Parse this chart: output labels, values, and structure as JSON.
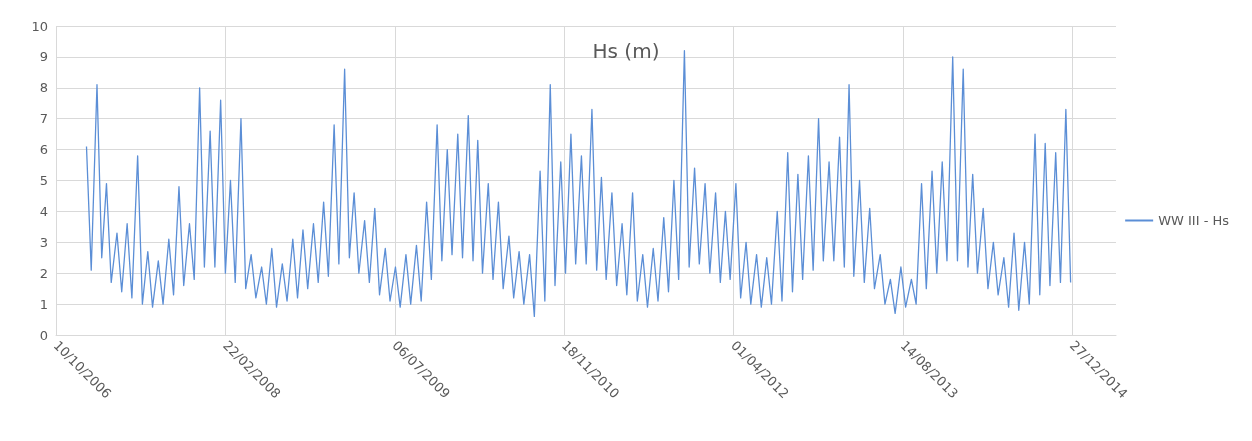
{
  "chart_data": {
    "type": "line",
    "title": "Hs (m)",
    "legend": "right",
    "grid": true,
    "marker": "none",
    "line_style": "solid",
    "xlim": [
      "2006-10-10",
      "2015-05-05"
    ],
    "xticks": [
      {
        "value": "2006-10-10",
        "label": "10/10/2006"
      },
      {
        "value": "2008-02-22",
        "label": "22/02/2008"
      },
      {
        "value": "2009-07-06",
        "label": "06/07/2009"
      },
      {
        "value": "2010-11-18",
        "label": "18/11/2010"
      },
      {
        "value": "2012-04-01",
        "label": "01/04/2012"
      },
      {
        "value": "2013-08-14",
        "label": "14/08/2013"
      },
      {
        "value": "2014-12-27",
        "label": "27/12/2014"
      }
    ],
    "ylim": [
      0,
      10
    ],
    "yticks": [
      0,
      1,
      2,
      3,
      4,
      5,
      6,
      7,
      8,
      9,
      10
    ],
    "x": [
      "2007-01-08",
      "2007-01-22",
      "2007-02-08",
      "2007-02-22",
      "2007-03-08",
      "2007-03-22",
      "2007-04-08",
      "2007-04-22",
      "2007-05-08",
      "2007-05-22",
      "2007-06-08",
      "2007-06-22",
      "2007-07-08",
      "2007-07-22",
      "2007-08-08",
      "2007-08-22",
      "2007-09-08",
      "2007-09-22",
      "2007-10-08",
      "2007-10-22",
      "2007-11-08",
      "2007-11-22",
      "2007-12-08",
      "2007-12-22",
      "2008-01-08",
      "2008-01-22",
      "2008-02-08",
      "2008-02-22",
      "2008-03-08",
      "2008-03-22",
      "2008-04-08",
      "2008-04-22",
      "2008-05-08",
      "2008-05-22",
      "2008-06-08",
      "2008-06-22",
      "2008-07-08",
      "2008-07-22",
      "2008-08-08",
      "2008-08-22",
      "2008-09-08",
      "2008-09-22",
      "2008-10-08",
      "2008-10-22",
      "2008-11-08",
      "2008-11-22",
      "2008-12-08",
      "2008-12-22",
      "2009-01-08",
      "2009-01-22",
      "2009-02-08",
      "2009-02-22",
      "2009-03-08",
      "2009-03-22",
      "2009-04-08",
      "2009-04-22",
      "2009-05-08",
      "2009-05-22",
      "2009-06-08",
      "2009-06-22",
      "2009-07-08",
      "2009-07-22",
      "2009-08-08",
      "2009-08-22",
      "2009-09-08",
      "2009-09-22",
      "2009-10-08",
      "2009-10-22",
      "2009-11-08",
      "2009-11-22",
      "2009-12-08",
      "2009-12-22",
      "2010-01-08",
      "2010-01-22",
      "2010-02-08",
      "2010-02-22",
      "2010-03-08",
      "2010-03-22",
      "2010-04-08",
      "2010-04-22",
      "2010-05-08",
      "2010-05-22",
      "2010-06-08",
      "2010-06-22",
      "2010-07-08",
      "2010-07-22",
      "2010-08-08",
      "2010-08-22",
      "2010-09-08",
      "2010-09-22",
      "2010-10-08",
      "2010-10-22",
      "2010-11-08",
      "2010-11-22",
      "2010-12-08",
      "2010-12-22",
      "2011-01-08",
      "2011-01-22",
      "2011-02-08",
      "2011-02-22",
      "2011-03-08",
      "2011-03-22",
      "2011-04-08",
      "2011-04-22",
      "2011-05-08",
      "2011-05-22",
      "2011-06-08",
      "2011-06-22",
      "2011-07-08",
      "2011-07-22",
      "2011-08-08",
      "2011-08-22",
      "2011-09-08",
      "2011-09-22",
      "2011-10-08",
      "2011-10-22",
      "2011-11-08",
      "2011-11-22",
      "2011-12-08",
      "2011-12-22",
      "2012-01-08",
      "2012-01-22",
      "2012-02-08",
      "2012-02-22",
      "2012-03-08",
      "2012-03-22",
      "2012-04-08",
      "2012-04-22",
      "2012-05-08",
      "2012-05-22",
      "2012-06-08",
      "2012-06-22",
      "2012-07-08",
      "2012-07-22",
      "2012-08-08",
      "2012-08-22",
      "2012-09-08",
      "2012-09-22",
      "2012-10-08",
      "2012-10-22",
      "2012-11-08",
      "2012-11-22",
      "2012-12-08",
      "2012-12-22",
      "2013-01-08",
      "2013-01-22",
      "2013-02-08",
      "2013-02-22",
      "2013-03-08",
      "2013-03-22",
      "2013-04-08",
      "2013-04-22",
      "2013-05-08",
      "2013-05-22",
      "2013-06-08",
      "2013-06-22",
      "2013-07-08",
      "2013-07-22",
      "2013-08-08",
      "2013-08-22",
      "2013-09-08",
      "2013-09-22",
      "2013-10-08",
      "2013-10-22",
      "2013-11-08",
      "2013-11-22",
      "2013-12-08",
      "2013-12-22",
      "2014-01-08",
      "2014-01-22",
      "2014-02-08",
      "2014-02-22",
      "2014-03-08",
      "2014-03-22",
      "2014-04-08",
      "2014-04-22",
      "2014-05-08",
      "2014-05-22",
      "2014-06-08",
      "2014-06-22",
      "2014-07-08",
      "2014-07-22",
      "2014-08-08",
      "2014-08-22",
      "2014-09-08",
      "2014-09-22",
      "2014-10-08",
      "2014-10-22",
      "2014-11-08",
      "2014-11-22",
      "2014-12-08",
      "2014-12-22"
    ],
    "series": [
      {
        "name": "WW III - Hs",
        "color": "#5b8ed6",
        "values": [
          6.1,
          2.1,
          8.1,
          2.5,
          4.9,
          1.7,
          3.3,
          1.4,
          3.6,
          1.2,
          5.8,
          1.0,
          2.7,
          0.9,
          2.4,
          1.0,
          3.1,
          1.3,
          4.8,
          1.6,
          3.6,
          1.8,
          8.0,
          2.2,
          6.6,
          2.2,
          7.6,
          2.0,
          5.0,
          1.7,
          7.0,
          1.5,
          2.6,
          1.2,
          2.2,
          1.0,
          2.8,
          0.9,
          2.3,
          1.1,
          3.1,
          1.2,
          3.4,
          1.5,
          3.6,
          1.7,
          4.3,
          1.9,
          6.8,
          2.3,
          8.6,
          2.5,
          4.6,
          2.0,
          3.7,
          1.7,
          4.1,
          1.3,
          2.8,
          1.1,
          2.2,
          0.9,
          2.6,
          1.0,
          2.9,
          1.1,
          4.3,
          1.8,
          6.8,
          2.4,
          6.0,
          2.6,
          6.5,
          2.5,
          7.1,
          2.4,
          6.3,
          2.0,
          4.9,
          1.8,
          4.3,
          1.5,
          3.2,
          1.2,
          2.7,
          1.0,
          2.6,
          0.6,
          5.3,
          1.1,
          8.1,
          1.6,
          5.6,
          2.0,
          6.5,
          2.3,
          5.8,
          2.3,
          7.3,
          2.1,
          5.1,
          1.8,
          4.6,
          1.6,
          3.6,
          1.3,
          4.6,
          1.1,
          2.6,
          0.9,
          2.8,
          1.1,
          3.8,
          1.4,
          5.0,
          1.8,
          9.2,
          2.2,
          5.4,
          2.3,
          4.9,
          2.0,
          4.6,
          1.7,
          4.0,
          1.8,
          4.9,
          1.2,
          3.0,
          1.0,
          2.6,
          0.9,
          2.5,
          1.0,
          4.0,
          1.1,
          5.9,
          1.4,
          5.2,
          1.8,
          5.8,
          2.1,
          7.0,
          2.4,
          5.6,
          2.4,
          6.4,
          2.2,
          8.1,
          1.9,
          5.0,
          1.7,
          4.1,
          1.5,
          2.6,
          1.0,
          1.8,
          0.7,
          2.2,
          0.9,
          1.8,
          1.0,
          4.9,
          1.5,
          5.3,
          2.0,
          5.6,
          2.4,
          9.0,
          2.4,
          8.6,
          2.2,
          5.2,
          2.0,
          4.1,
          1.5,
          3.0,
          1.3,
          2.5,
          0.9,
          3.3,
          0.8,
          3.0,
          1.0,
          6.5,
          1.3,
          6.2,
          1.6,
          5.9,
          1.7,
          7.3,
          1.7
        ]
      }
    ]
  }
}
